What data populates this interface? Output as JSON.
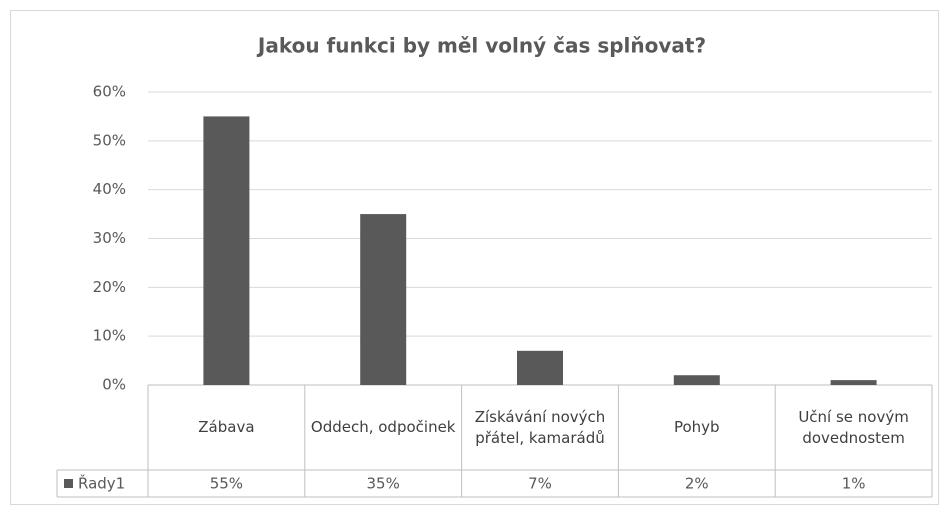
{
  "chart_data": {
    "type": "bar",
    "title": "Jakou funkci by měl volný čas splňovat?",
    "categories": [
      "Zábava",
      "Oddech, odpočinek",
      "Získávání nových přátel, kamarádů",
      "Pohyb",
      "Uční se novým dovednostem"
    ],
    "series": [
      {
        "name": "Řady1",
        "color": "#595959",
        "values": [
          55,
          35,
          7,
          2,
          1
        ],
        "value_labels": [
          "55%",
          "35%",
          "7%",
          "2%",
          "1%"
        ]
      }
    ],
    "ylim": [
      0,
      60
    ],
    "yticks": [
      {
        "value": 0,
        "label": "0%"
      },
      {
        "value": 10,
        "label": "10%"
      },
      {
        "value": 20,
        "label": "20%"
      },
      {
        "value": 30,
        "label": "30%"
      },
      {
        "value": 40,
        "label": "40%"
      },
      {
        "value": 50,
        "label": "50%"
      },
      {
        "value": 60,
        "label": "60%"
      }
    ],
    "grid": true
  }
}
